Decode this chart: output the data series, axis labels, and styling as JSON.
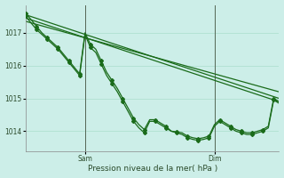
{
  "xlabel": "Pression niveau de la mer( hPa )",
  "bg_color": "#cceee8",
  "grid_color": "#aaddcc",
  "line_color": "#1a6b1a",
  "xlim": [
    0,
    47
  ],
  "ylim": [
    1013.4,
    1017.85
  ],
  "yticks": [
    1014,
    1015,
    1016,
    1017
  ],
  "sam_x": 11,
  "dim_x": 35,
  "straight_lines": [
    [
      [
        0,
        47
      ],
      [
        1017.55,
        1015.0
      ]
    ],
    [
      [
        0,
        47
      ],
      [
        1017.45,
        1014.9
      ]
    ],
    [
      [
        0,
        47
      ],
      [
        1017.35,
        1015.2
      ]
    ]
  ],
  "jagged1": [
    1017.5,
    1017.3,
    1017.1,
    1016.95,
    1016.8,
    1016.65,
    1016.5,
    1016.3,
    1016.1,
    1015.9,
    1015.7,
    1016.95,
    1016.55,
    1016.4,
    1016.05,
    1015.7,
    1015.45,
    1015.2,
    1014.9,
    1014.6,
    1014.3,
    1014.1,
    1013.95,
    1014.3,
    1014.3,
    1014.2,
    1014.1,
    1014.0,
    1013.95,
    1013.9,
    1013.8,
    1013.75,
    1013.72,
    1013.75,
    1013.8,
    1014.15,
    1014.3,
    1014.2,
    1014.1,
    1014.0,
    1013.95,
    1013.9,
    1013.9,
    1013.95,
    1014.0,
    1014.1,
    1014.95,
    1014.85
  ],
  "jagged2": [
    1017.6,
    1017.4,
    1017.2,
    1017.0,
    1016.85,
    1016.7,
    1016.55,
    1016.35,
    1016.15,
    1015.95,
    1015.75,
    1017.0,
    1016.65,
    1016.5,
    1016.15,
    1015.8,
    1015.55,
    1015.3,
    1015.0,
    1014.7,
    1014.4,
    1014.2,
    1014.05,
    1014.35,
    1014.35,
    1014.25,
    1014.15,
    1014.0,
    1013.98,
    1013.95,
    1013.85,
    1013.8,
    1013.77,
    1013.8,
    1013.85,
    1014.2,
    1014.35,
    1014.25,
    1014.15,
    1014.05,
    1014.0,
    1013.95,
    1013.95,
    1014.0,
    1014.05,
    1014.15,
    1015.0,
    1014.9
  ]
}
